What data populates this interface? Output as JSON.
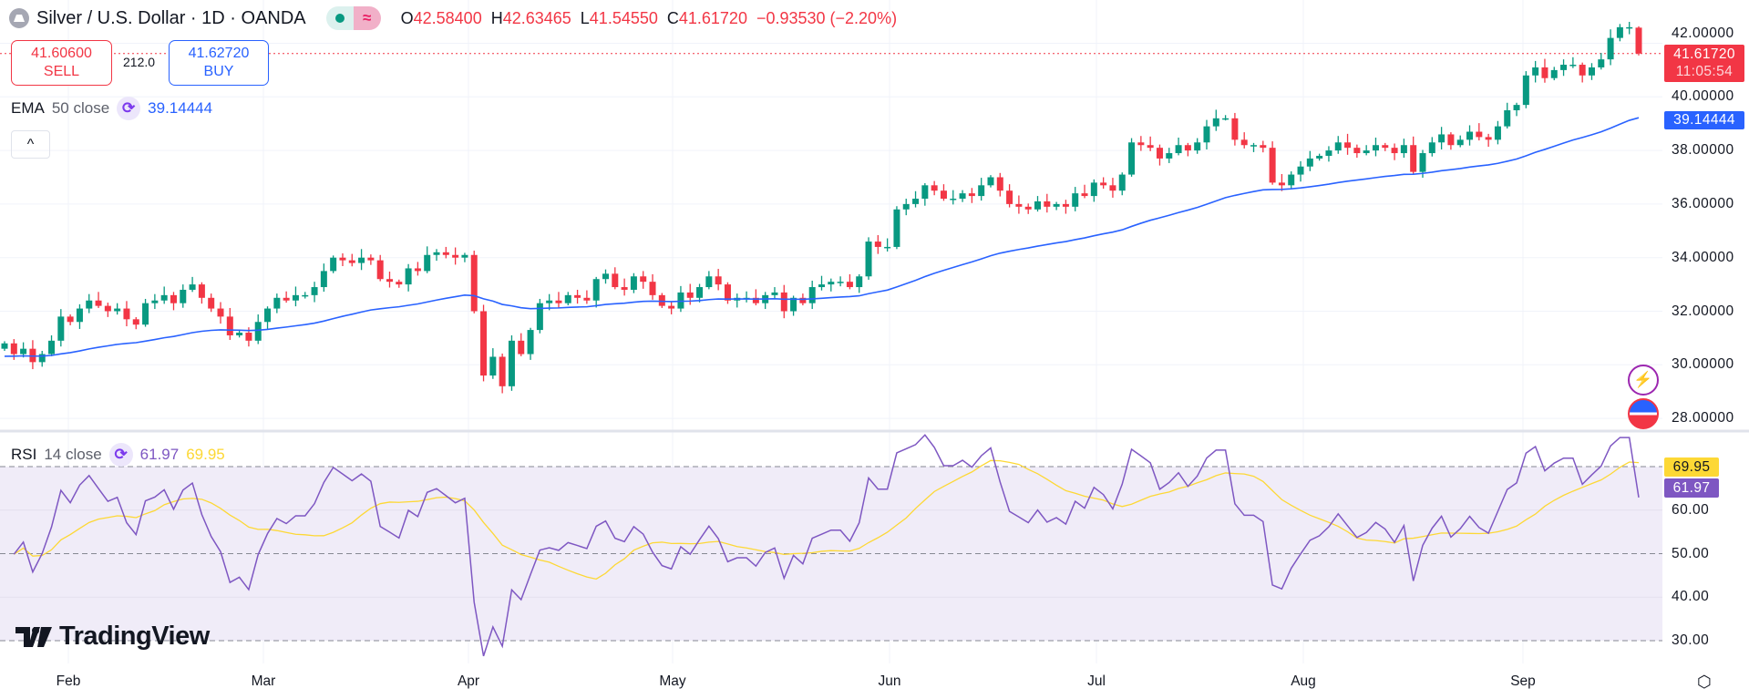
{
  "header": {
    "symbol_icon": "silver-ingot-icon",
    "title": "Silver / U.S. Dollar · 1D · OANDA",
    "market_status": "market-open-dot",
    "data_icon": "≈",
    "ohlc": [
      {
        "k": "O",
        "v": "42.58400"
      },
      {
        "k": "H",
        "v": "42.63465"
      },
      {
        "k": "L",
        "v": "41.54550"
      },
      {
        "k": "C",
        "v": "41.61720"
      }
    ],
    "change": "−0.93530 (−2.20%)"
  },
  "trade": {
    "sell_price": "41.60600",
    "sell_label": "SELL",
    "spread": "212.0",
    "buy_price": "41.62720",
    "buy_label": "BUY"
  },
  "ema_legend": {
    "name": "EMA",
    "params": "50 close",
    "value": "39.14444"
  },
  "collapse_icon": "^",
  "rsi_legend": {
    "name": "RSI",
    "params": "14 close",
    "value": "61.97",
    "ma_value": "69.95"
  },
  "price_axis": {
    "ticks": [
      "42.00000",
      "40.00000",
      "38.00000",
      "36.00000",
      "34.00000",
      "32.00000",
      "30.00000",
      "28.00000"
    ],
    "last_price": "41.61720",
    "countdown": "11:05:54",
    "ema_tag": "39.14444"
  },
  "rsi_axis": {
    "ticks": [
      "60.00",
      "50.00",
      "40.00",
      "30.00"
    ],
    "ma_tag": "69.95",
    "rsi_tag": "61.97"
  },
  "time_axis": [
    "Feb",
    "Mar",
    "Apr",
    "May",
    "Jun",
    "Jul",
    "Aug",
    "Sep"
  ],
  "logo": "TradingView",
  "colors": {
    "up": "#089981",
    "down": "#f23645",
    "ema": "#2962ff",
    "rsi": "#7e57c2",
    "rsi_ma": "#fdd835",
    "rsi_band": "#f0ecf8"
  },
  "chart_data": {
    "type": "candlestick",
    "price_range": [
      27.3,
      43.6
    ],
    "rsi_range": [
      27,
      78
    ],
    "rsi_bands": [
      30,
      50,
      70
    ],
    "close": [
      30.8,
      30.4,
      30.6,
      30.1,
      30.4,
      30.9,
      31.8,
      31.6,
      32.1,
      32.4,
      32.2,
      32.0,
      32.1,
      31.7,
      31.5,
      32.3,
      32.4,
      32.6,
      32.3,
      32.8,
      33.0,
      32.5,
      32.1,
      31.8,
      31.1,
      31.2,
      30.9,
      31.6,
      32.1,
      32.5,
      32.4,
      32.6,
      32.6,
      32.9,
      33.5,
      34.0,
      33.9,
      33.8,
      34.0,
      33.9,
      33.2,
      33.1,
      33.0,
      33.6,
      33.5,
      34.1,
      34.2,
      34.1,
      34.0,
      34.1,
      32.0,
      29.6,
      30.3,
      29.2,
      30.9,
      30.4,
      31.3,
      32.3,
      32.4,
      32.3,
      32.6,
      32.5,
      32.4,
      33.2,
      33.4,
      32.9,
      32.8,
      33.3,
      33.1,
      32.6,
      32.2,
      32.1,
      32.7,
      32.5,
      32.9,
      33.3,
      33.0,
      32.4,
      32.5,
      32.5,
      32.3,
      32.6,
      32.7,
      32.0,
      32.5,
      32.3,
      32.9,
      33.0,
      33.1,
      33.1,
      32.9,
      33.3,
      34.6,
      34.4,
      34.4,
      35.8,
      36.0,
      36.2,
      36.7,
      36.5,
      36.2,
      36.2,
      36.4,
      36.3,
      36.7,
      37.0,
      36.5,
      36.0,
      35.9,
      35.8,
      36.1,
      35.9,
      36.0,
      35.9,
      36.4,
      36.3,
      36.8,
      36.7,
      36.5,
      37.1,
      38.3,
      38.2,
      38.1,
      37.7,
      37.9,
      38.2,
      38.0,
      38.3,
      38.9,
      39.2,
      39.2,
      38.4,
      38.2,
      38.2,
      38.1,
      36.8,
      36.7,
      37.1,
      37.4,
      37.7,
      37.8,
      38.0,
      38.3,
      38.1,
      37.9,
      38.0,
      38.2,
      38.1,
      37.9,
      38.2,
      37.2,
      37.9,
      38.3,
      38.6,
      38.2,
      38.4,
      38.7,
      38.5,
      38.4,
      38.9,
      39.5,
      39.7,
      40.8,
      41.1,
      40.7,
      41.0,
      41.2,
      41.2,
      40.8,
      41.1,
      41.4,
      42.2,
      42.6,
      42.6,
      41.6172
    ],
    "last": {
      "open": 42.584,
      "high": 42.63465,
      "low": 41.5455,
      "close": 41.6172
    },
    "ema_period": 50,
    "rsi_period": 14
  }
}
